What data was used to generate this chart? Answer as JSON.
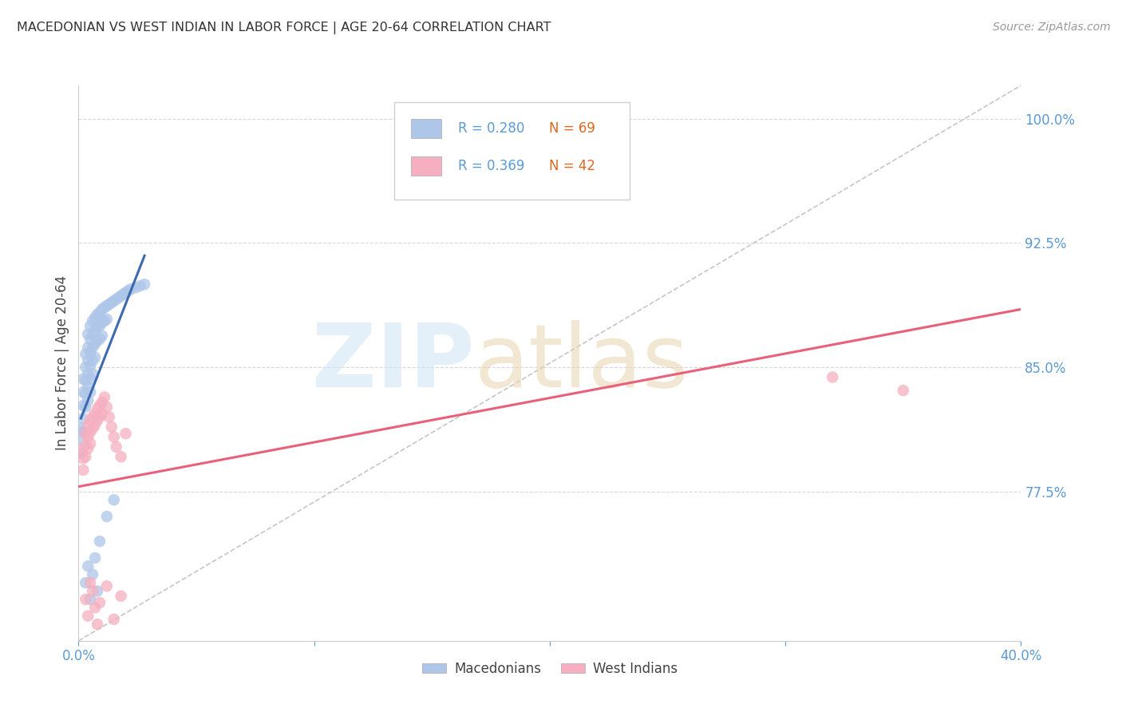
{
  "title": "MACEDONIAN VS WEST INDIAN IN LABOR FORCE | AGE 20-64 CORRELATION CHART",
  "source": "Source: ZipAtlas.com",
  "ylabel": "In Labor Force | Age 20-64",
  "ytick_labels_right": [
    "77.5%",
    "85.0%",
    "92.5%",
    "100.0%"
  ],
  "yticks_right": [
    0.775,
    0.85,
    0.925,
    1.0
  ],
  "xlim": [
    0.0,
    0.4
  ],
  "ylim": [
    0.685,
    1.02
  ],
  "blue_color": "#aec6e8",
  "pink_color": "#f5afc0",
  "blue_line_color": "#3c6ab0",
  "pink_line_color": "#e8607a",
  "tick_color": "#5b9bd5",
  "grid_color": "#d8d8d8",
  "R_blue": 0.28,
  "N_blue": 69,
  "R_pink": 0.369,
  "N_pink": 42,
  "legend_label_blue": "Macedonians",
  "legend_label_pink": "West Indians",
  "blue_scatter_x": [
    0.001,
    0.001,
    0.001,
    0.002,
    0.002,
    0.002,
    0.002,
    0.002,
    0.003,
    0.003,
    0.003,
    0.003,
    0.003,
    0.004,
    0.004,
    0.004,
    0.004,
    0.004,
    0.004,
    0.005,
    0.005,
    0.005,
    0.005,
    0.005,
    0.005,
    0.006,
    0.006,
    0.006,
    0.006,
    0.006,
    0.007,
    0.007,
    0.007,
    0.007,
    0.008,
    0.008,
    0.008,
    0.009,
    0.009,
    0.009,
    0.01,
    0.01,
    0.01,
    0.011,
    0.011,
    0.012,
    0.012,
    0.013,
    0.014,
    0.015,
    0.016,
    0.017,
    0.018,
    0.019,
    0.02,
    0.021,
    0.022,
    0.024,
    0.026,
    0.028,
    0.003,
    0.004,
    0.005,
    0.006,
    0.007,
    0.008,
    0.009,
    0.012,
    0.015
  ],
  "blue_scatter_y": [
    0.813,
    0.806,
    0.798,
    0.843,
    0.835,
    0.827,
    0.819,
    0.811,
    0.858,
    0.85,
    0.842,
    0.834,
    0.826,
    0.87,
    0.862,
    0.854,
    0.846,
    0.838,
    0.83,
    0.875,
    0.867,
    0.859,
    0.851,
    0.843,
    0.835,
    0.878,
    0.87,
    0.862,
    0.854,
    0.846,
    0.88,
    0.872,
    0.864,
    0.856,
    0.882,
    0.874,
    0.866,
    0.883,
    0.875,
    0.867,
    0.885,
    0.877,
    0.869,
    0.886,
    0.878,
    0.887,
    0.879,
    0.888,
    0.889,
    0.89,
    0.891,
    0.892,
    0.893,
    0.894,
    0.895,
    0.896,
    0.897,
    0.898,
    0.899,
    0.9,
    0.72,
    0.73,
    0.71,
    0.725,
    0.735,
    0.715,
    0.745,
    0.76,
    0.77
  ],
  "pink_scatter_x": [
    0.001,
    0.002,
    0.002,
    0.003,
    0.003,
    0.003,
    0.004,
    0.004,
    0.004,
    0.005,
    0.005,
    0.005,
    0.006,
    0.006,
    0.007,
    0.007,
    0.008,
    0.008,
    0.009,
    0.009,
    0.01,
    0.01,
    0.011,
    0.012,
    0.013,
    0.014,
    0.015,
    0.016,
    0.018,
    0.02,
    0.003,
    0.004,
    0.005,
    0.006,
    0.007,
    0.008,
    0.009,
    0.012,
    0.015,
    0.018,
    0.32,
    0.35
  ],
  "pink_scatter_y": [
    0.8,
    0.795,
    0.788,
    0.81,
    0.803,
    0.796,
    0.815,
    0.808,
    0.801,
    0.818,
    0.811,
    0.804,
    0.82,
    0.813,
    0.822,
    0.815,
    0.825,
    0.818,
    0.827,
    0.82,
    0.829,
    0.822,
    0.832,
    0.826,
    0.82,
    0.814,
    0.808,
    0.802,
    0.796,
    0.81,
    0.71,
    0.7,
    0.72,
    0.715,
    0.705,
    0.695,
    0.708,
    0.718,
    0.698,
    0.712,
    0.844,
    0.836
  ],
  "pink_line_x0": 0.0,
  "pink_line_x1": 0.4,
  "pink_line_y0": 0.778,
  "pink_line_y1": 0.885
}
